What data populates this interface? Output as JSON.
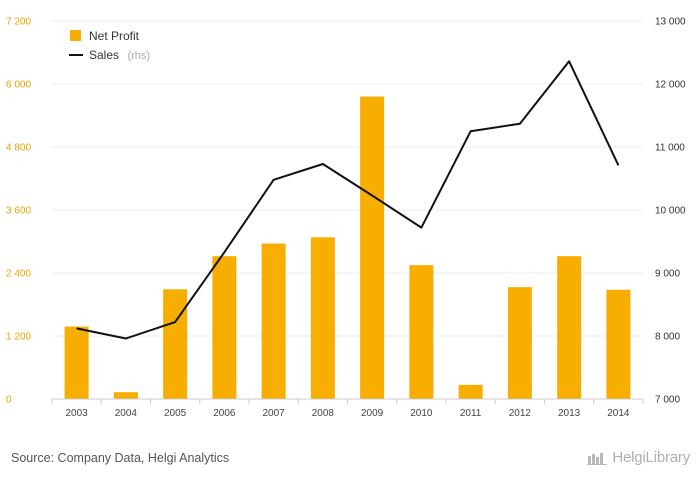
{
  "colors": {
    "bar": "#f7ae00",
    "line": "#111111",
    "left_axis": "#e8a400",
    "grid": "#ececec"
  },
  "chart_data": {
    "type": "bar+line",
    "categories": [
      "2003",
      "2004",
      "2005",
      "2006",
      "2007",
      "2008",
      "2009",
      "2010",
      "2011",
      "2012",
      "2013",
      "2014"
    ],
    "series": [
      {
        "name": "Net Profit",
        "type": "bar",
        "axis": "left",
        "values": [
          1380,
          130,
          2090,
          2720,
          2960,
          3080,
          5760,
          2550,
          270,
          2130,
          2720,
          2080
        ]
      },
      {
        "name": "Sales",
        "name_suffix": "(rhs)",
        "type": "line",
        "axis": "right",
        "values": [
          8120,
          7960,
          8220,
          9330,
          10480,
          10730,
          10230,
          9720,
          11250,
          11370,
          12360,
          10710
        ]
      }
    ],
    "ylim_left": [
      0,
      7200
    ],
    "yticks_left": [
      0,
      1200,
      2400,
      3600,
      4800,
      6000,
      7200
    ],
    "yticks_left_labels": [
      "0",
      "1 200",
      "2 400",
      "3 600",
      "4 800",
      "6 000",
      "7 200"
    ],
    "ylim_right": [
      7000,
      13000
    ],
    "yticks_right": [
      7000,
      8000,
      9000,
      10000,
      11000,
      12000,
      13000
    ],
    "yticks_right_labels": [
      "7 000",
      "8 000",
      "9 000",
      "10 000",
      "11 000",
      "12 000",
      "13 000"
    ],
    "grid": true,
    "legend_position": "top-left"
  },
  "footer": {
    "source": "Source: Company Data, Helgi Analytics",
    "brand": "HelgiLibrary"
  }
}
